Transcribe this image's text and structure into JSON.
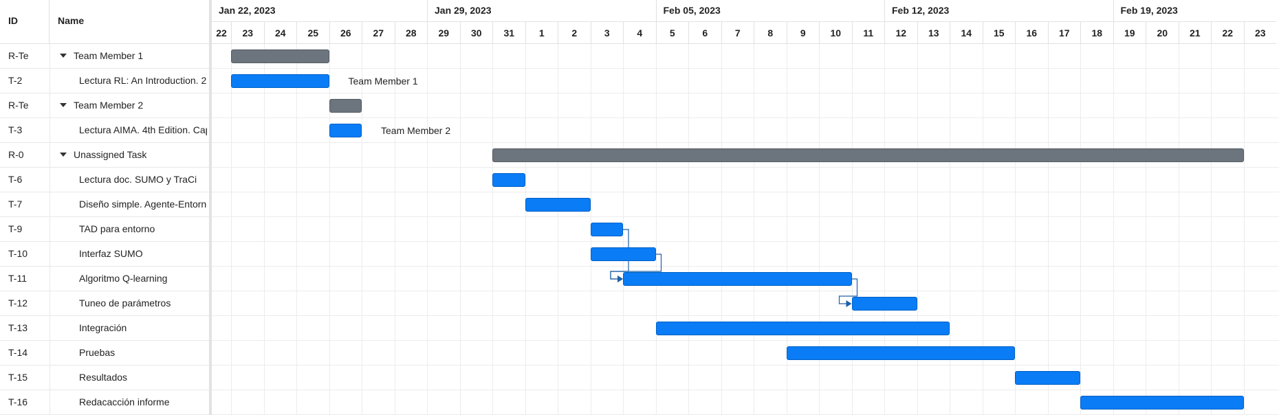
{
  "grid": {
    "header_id": "ID",
    "header_name": "Name",
    "rows": [
      {
        "id": "R-Te",
        "name": "Team Member 1",
        "group": true
      },
      {
        "id": "T-2",
        "name": "Lectura RL: An Introduction. 2",
        "group": false
      },
      {
        "id": "R-Te",
        "name": "Team Member 2",
        "group": true
      },
      {
        "id": "T-3",
        "name": "Lectura AIMA. 4th Edition. Cap",
        "group": false
      },
      {
        "id": "R-0",
        "name": "Unassigned Task",
        "group": true
      },
      {
        "id": "T-6",
        "name": "Lectura doc. SUMO y TraCi",
        "group": false
      },
      {
        "id": "T-7",
        "name": "Diseño simple. Agente-Entorno",
        "group": false
      },
      {
        "id": "T-9",
        "name": "TAD para entorno",
        "group": false
      },
      {
        "id": "T-10",
        "name": "Interfaz SUMO",
        "group": false
      },
      {
        "id": "T-11",
        "name": "Algoritmo Q-learning",
        "group": false
      },
      {
        "id": "T-12",
        "name": "Tuneo de parámetros",
        "group": false
      },
      {
        "id": "T-13",
        "name": "Integración",
        "group": false
      },
      {
        "id": "T-14",
        "name": "Pruebas",
        "group": false
      },
      {
        "id": "T-15",
        "name": "Resultados",
        "group": false
      },
      {
        "id": "T-16",
        "name": "Redacacción informe",
        "group": false
      }
    ]
  },
  "timeline": {
    "weeks": [
      "Jan 22, 2023",
      "Jan 29, 2023",
      "Feb 05, 2023",
      "Feb 12, 2023",
      "Feb 19, 2023"
    ],
    "days": [
      "22",
      "23",
      "24",
      "25",
      "26",
      "27",
      "28",
      "29",
      "30",
      "31",
      "1",
      "2",
      "3",
      "4",
      "5",
      "6",
      "7",
      "8",
      "9",
      "10",
      "11",
      "12",
      "13",
      "14",
      "15",
      "16",
      "17",
      "18",
      "19",
      "20",
      "21",
      "22",
      "23"
    ]
  },
  "bars": [
    {
      "row": 0,
      "start": "2023-01-23",
      "end": "2023-01-26",
      "kind": "group",
      "label": ""
    },
    {
      "row": 1,
      "start": "2023-01-23",
      "end": "2023-01-26",
      "kind": "task",
      "label": "Team Member 1"
    },
    {
      "row": 2,
      "start": "2023-01-26",
      "end": "2023-01-27",
      "kind": "group",
      "label": ""
    },
    {
      "row": 3,
      "start": "2023-01-26",
      "end": "2023-01-27",
      "kind": "task",
      "label": "Team Member 2"
    },
    {
      "row": 4,
      "start": "2023-01-31",
      "end": "2023-02-23",
      "kind": "group",
      "label": ""
    },
    {
      "row": 5,
      "start": "2023-01-31",
      "end": "2023-02-01",
      "kind": "task",
      "label": ""
    },
    {
      "row": 6,
      "start": "2023-02-01",
      "end": "2023-02-03",
      "kind": "task",
      "label": ""
    },
    {
      "row": 7,
      "start": "2023-02-03",
      "end": "2023-02-04",
      "kind": "task",
      "label": ""
    },
    {
      "row": 8,
      "start": "2023-02-03",
      "end": "2023-02-05",
      "kind": "task",
      "label": ""
    },
    {
      "row": 9,
      "start": "2023-02-04",
      "end": "2023-02-11",
      "kind": "task",
      "label": ""
    },
    {
      "row": 10,
      "start": "2023-02-11",
      "end": "2023-02-13",
      "kind": "task",
      "label": ""
    },
    {
      "row": 11,
      "start": "2023-02-05",
      "end": "2023-02-14",
      "kind": "task",
      "label": ""
    },
    {
      "row": 12,
      "start": "2023-02-09",
      "end": "2023-02-16",
      "kind": "task",
      "label": ""
    },
    {
      "row": 13,
      "start": "2023-02-16",
      "end": "2023-02-18",
      "kind": "task",
      "label": ""
    },
    {
      "row": 14,
      "start": "2023-02-18",
      "end": "2023-02-23",
      "kind": "task",
      "label": ""
    }
  ],
  "links": [
    {
      "from": 7,
      "to": 9
    },
    {
      "from": 8,
      "to": 9
    },
    {
      "from": 9,
      "to": 10
    }
  ],
  "colors": {
    "group_bar": "#6c757d",
    "task_bar": "#0a7cf5",
    "link": "#1f5fa8"
  }
}
